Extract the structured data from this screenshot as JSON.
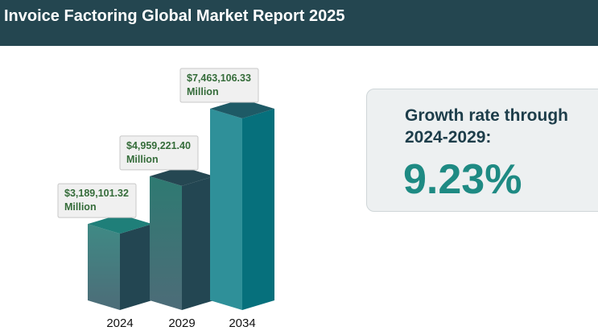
{
  "header": {
    "title": "Invoice Factoring Global Market Report 2025"
  },
  "growth": {
    "label": "Growth rate through 2024-2029:",
    "value": "9.23%"
  },
  "colors": {
    "header_bg": "#244650",
    "accent": "#1e8a83",
    "bar_top": [
      "#1f7f79",
      "#254752",
      "#1e5a66"
    ],
    "bar_front_top": [
      "#3f8a85",
      "#2e7a72",
      "#2f9099"
    ],
    "bar_front_bottom": [
      "#4d6c78",
      "#4d6c78",
      "#2f9099"
    ],
    "bar_side": [
      "#234652",
      "#234652",
      "#06707c"
    ]
  },
  "chart_data": {
    "type": "bar",
    "categories": [
      "2024",
      "2029",
      "2034"
    ],
    "values": [
      3189101.32,
      4959221.4,
      7463106.33
    ],
    "value_labels": [
      [
        "$3,189,101.32",
        "Million"
      ],
      [
        "$4,959,221.40",
        "Million"
      ],
      [
        "$7,463,106.33",
        "Million"
      ]
    ],
    "unit": "Million",
    "title": "",
    "xlabel": "",
    "ylabel": ""
  }
}
